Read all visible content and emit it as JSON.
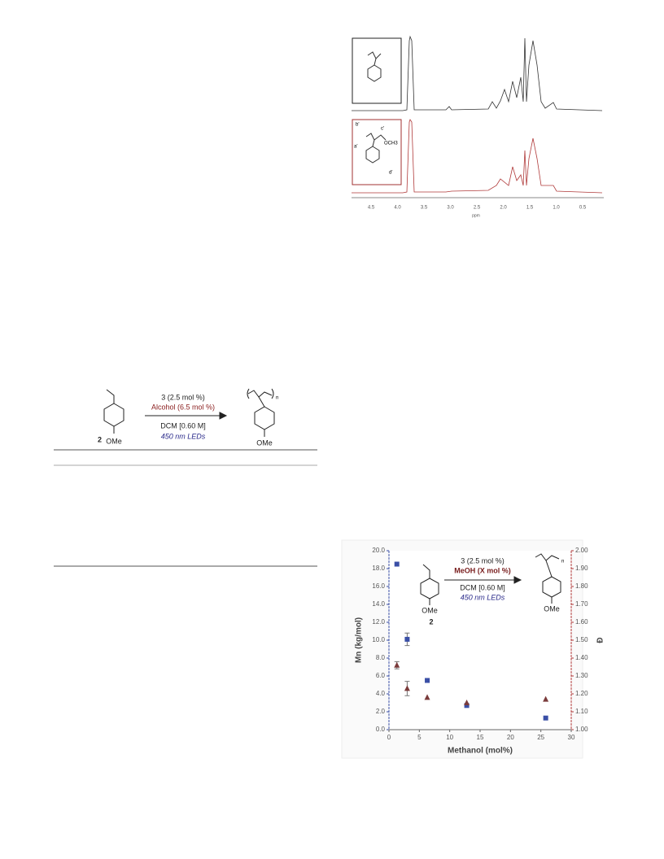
{
  "scheme": {
    "compound": "2",
    "substituent": "OMe",
    "product_substituent": "OMe",
    "repeat": "n",
    "catalyst": "3 (2.5 mol %)",
    "additive": "Alcohol (6.5 mol %)",
    "solvent": "DCM [0.60 M]",
    "light": "450 nm LEDs"
  },
  "nmr": {
    "axis_labels": [
      "4.5",
      "4.0",
      "3.5",
      "3.0",
      "2.5",
      "2.0",
      "1.5",
      "1.0",
      "0.5"
    ],
    "axis_title": "ppm",
    "red_labels": [
      "b'",
      "a'",
      "c'",
      "d'",
      "OCH3"
    ]
  },
  "chart_data": {
    "type": "scatter",
    "x_label": "Methanol (mol%)",
    "y_label": "Mn (kg/mol)",
    "y2_label": "Đ",
    "inset": {
      "catalyst": "3 (2.5 mol %)",
      "additive": "MeOH (X mol %)",
      "solvent": "DCM [0.60 M]",
      "light": "450 nm LEDs",
      "compound": "2",
      "substituent": "OMe",
      "product_substituent": "OMe",
      "repeat": "n"
    },
    "xlim": [
      0,
      30
    ],
    "xticks": [
      0,
      5,
      10,
      15,
      20,
      25,
      30
    ],
    "ylim": [
      0,
      20
    ],
    "yticks": [
      {
        "value": 0,
        "label": "0.0"
      },
      {
        "value": 2,
        "label": "2.0"
      },
      {
        "value": 4,
        "label": "4.0"
      },
      {
        "value": 6,
        "label": "6.0"
      },
      {
        "value": 8,
        "label": "8.0"
      },
      {
        "value": 10,
        "label": "10.0"
      },
      {
        "value": 12,
        "label": "12.0"
      },
      {
        "value": 14,
        "label": "14.0"
      },
      {
        "value": 16,
        "label": "16.0"
      },
      {
        "value": 18,
        "label": "18.0"
      },
      {
        "value": 20,
        "label": "20.0"
      }
    ],
    "y2lim": [
      1,
      2
    ],
    "y2ticks": [
      {
        "value": 1,
        "label": "1.00"
      },
      {
        "value": 1.1,
        "label": "1.10"
      },
      {
        "value": 1.2,
        "label": "1.20"
      },
      {
        "value": 1.3,
        "label": "1.30"
      },
      {
        "value": 1.4,
        "label": "1.40"
      },
      {
        "value": 1.5,
        "label": "1.50"
      },
      {
        "value": 1.6,
        "label": "1.60"
      },
      {
        "value": 1.7,
        "label": "1.70"
      },
      {
        "value": 1.8,
        "label": "1.80"
      },
      {
        "value": 1.9,
        "label": "1.90"
      },
      {
        "value": 2,
        "label": "2.00"
      }
    ],
    "series": [
      {
        "color": "#3a4fa6",
        "marker": "square",
        "x": [
          1.3,
          3.0,
          6.3,
          12.8,
          25.8
        ],
        "values": [
          18.5,
          10.1,
          5.5,
          2.7,
          1.3
        ],
        "errors": [
          null,
          0.7,
          null,
          null,
          null
        ]
      },
      {
        "color": "#7a3b3b",
        "marker": "triangle",
        "axis": "y2",
        "x": [
          1.3,
          3.0,
          6.3,
          12.8,
          25.8
        ],
        "values": [
          1.36,
          1.23,
          1.18,
          1.15,
          1.17
        ],
        "errors": [
          0.02,
          0.04,
          null,
          null,
          null
        ]
      }
    ]
  }
}
